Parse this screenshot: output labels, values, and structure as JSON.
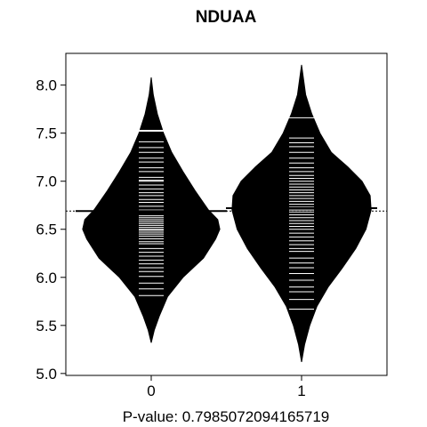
{
  "chart_data": {
    "type": "beanplot",
    "title": "NDUAA",
    "xlabel": "P-value: 0.7985072094165719",
    "categories": [
      "0",
      "1"
    ],
    "yticks": [
      "5.0",
      "5.5",
      "6.0",
      "6.5",
      "7.0",
      "7.5",
      "8.0"
    ],
    "ylim": [
      4.98,
      8.33
    ],
    "overall_mean": 6.69,
    "grid": false,
    "beans": [
      {
        "name": "0",
        "mean": 6.69,
        "density": [
          [
            5.32,
            0.0
          ],
          [
            5.45,
            0.03
          ],
          [
            5.6,
            0.08
          ],
          [
            5.8,
            0.16
          ],
          [
            6.0,
            0.31
          ],
          [
            6.2,
            0.51
          ],
          [
            6.4,
            0.63
          ],
          [
            6.5,
            0.67
          ],
          [
            6.6,
            0.65
          ],
          [
            6.7,
            0.56
          ],
          [
            6.9,
            0.43
          ],
          [
            7.1,
            0.31
          ],
          [
            7.3,
            0.2
          ],
          [
            7.5,
            0.12
          ],
          [
            7.7,
            0.06
          ],
          [
            7.9,
            0.02
          ],
          [
            8.08,
            0.0
          ]
        ],
        "values": [
          5.81,
          5.88,
          5.94,
          6.01,
          6.06,
          6.1,
          6.14,
          6.18,
          6.22,
          6.26,
          6.3,
          6.35,
          6.37,
          6.4,
          6.43,
          6.45,
          6.47,
          6.49,
          6.5,
          6.52,
          6.54,
          6.56,
          6.58,
          6.6,
          6.62,
          6.64,
          6.7,
          6.74,
          6.78,
          6.81,
          6.85,
          6.88,
          6.92,
          6.96,
          7.0,
          7.01,
          7.04,
          7.1,
          7.14,
          7.2,
          7.24,
          7.3,
          7.35,
          7.41,
          7.52,
          7.53
        ]
      },
      {
        "name": "1",
        "mean": 6.72,
        "density": [
          [
            5.12,
            0.0
          ],
          [
            5.3,
            0.03
          ],
          [
            5.5,
            0.08
          ],
          [
            5.7,
            0.15
          ],
          [
            5.9,
            0.26
          ],
          [
            6.1,
            0.4
          ],
          [
            6.3,
            0.53
          ],
          [
            6.5,
            0.63
          ],
          [
            6.7,
            0.68
          ],
          [
            6.85,
            0.67
          ],
          [
            7.0,
            0.59
          ],
          [
            7.15,
            0.45
          ],
          [
            7.3,
            0.29
          ],
          [
            7.5,
            0.18
          ],
          [
            7.7,
            0.1
          ],
          [
            7.9,
            0.04
          ],
          [
            8.21,
            0.0
          ]
        ],
        "values": [
          5.67,
          5.77,
          5.85,
          5.9,
          5.97,
          6.04,
          6.1,
          6.15,
          6.2,
          6.27,
          6.3,
          6.34,
          6.38,
          6.42,
          6.46,
          6.5,
          6.53,
          6.56,
          6.59,
          6.62,
          6.65,
          6.68,
          6.7,
          6.73,
          6.76,
          6.79,
          6.82,
          6.85,
          6.88,
          6.91,
          6.94,
          6.97,
          7.0,
          7.03,
          7.06,
          7.1,
          7.14,
          7.19,
          7.24,
          7.3,
          7.36,
          7.4,
          7.45,
          7.66
        ]
      }
    ]
  }
}
